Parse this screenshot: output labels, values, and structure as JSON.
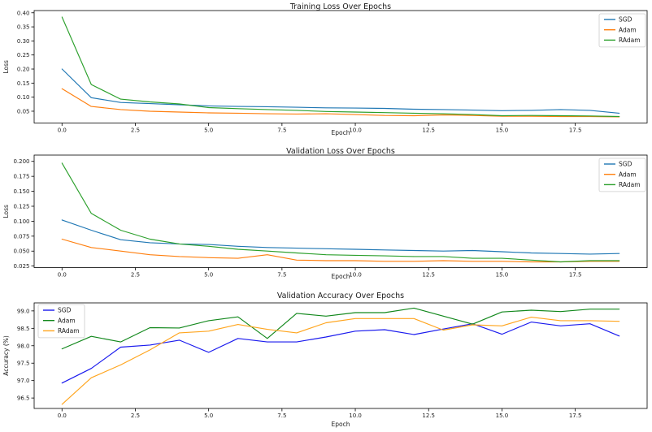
{
  "figure": {
    "background": "#ffffff",
    "text_color": "#1a1a1a",
    "frame_color": "#000000"
  },
  "chart_data": [
    {
      "type": "line",
      "title": "Training Loss Over Epochs",
      "xlabel": "Epoch",
      "ylabel": "Loss",
      "x": [
        0,
        1,
        2,
        3,
        4,
        5,
        6,
        7,
        8,
        9,
        10,
        11,
        12,
        13,
        14,
        15,
        16,
        17,
        18,
        19
      ],
      "xlim": [
        -0.95,
        19.95
      ],
      "ylim": [
        0.008,
        0.408
      ],
      "xticks": [
        0.0,
        2.5,
        5.0,
        7.5,
        10.0,
        12.5,
        15.0,
        17.5
      ],
      "yticks": [
        0.05,
        0.1,
        0.15,
        0.2,
        0.25,
        0.3,
        0.35,
        0.4
      ],
      "xtick_decimals": 1,
      "ytick_decimals": 2,
      "grid": false,
      "legend_position": "upper-right",
      "series": [
        {
          "name": "SGD",
          "color": "#1f77b4",
          "values": [
            0.2,
            0.098,
            0.081,
            0.077,
            0.073,
            0.069,
            0.067,
            0.066,
            0.064,
            0.062,
            0.061,
            0.06,
            0.057,
            0.056,
            0.054,
            0.052,
            0.053,
            0.056,
            0.053,
            0.043
          ]
        },
        {
          "name": "Adam",
          "color": "#ff7f0e",
          "values": [
            0.13,
            0.067,
            0.056,
            0.05,
            0.047,
            0.044,
            0.043,
            0.041,
            0.04,
            0.041,
            0.038,
            0.035,
            0.034,
            0.037,
            0.035,
            0.032,
            0.032,
            0.031,
            0.031,
            0.03
          ]
        },
        {
          "name": "RAdam",
          "color": "#2ca02c",
          "values": [
            0.385,
            0.145,
            0.093,
            0.083,
            0.076,
            0.063,
            0.059,
            0.056,
            0.053,
            0.049,
            0.047,
            0.045,
            0.043,
            0.041,
            0.038,
            0.034,
            0.035,
            0.034,
            0.033,
            0.031
          ]
        }
      ]
    },
    {
      "type": "line",
      "title": "Validation Loss Over Epochs",
      "xlabel": "Epoch",
      "ylabel": "Loss",
      "x": [
        0,
        1,
        2,
        3,
        4,
        5,
        6,
        7,
        8,
        9,
        10,
        11,
        12,
        13,
        14,
        15,
        16,
        17,
        18,
        19
      ],
      "xlim": [
        -0.95,
        19.95
      ],
      "ylim": [
        0.0225,
        0.2105
      ],
      "xticks": [
        0.0,
        2.5,
        5.0,
        7.5,
        10.0,
        12.5,
        15.0,
        17.5
      ],
      "yticks": [
        0.025,
        0.05,
        0.075,
        0.1,
        0.125,
        0.15,
        0.175,
        0.2
      ],
      "xtick_decimals": 1,
      "ytick_decimals": 3,
      "grid": false,
      "legend_position": "upper-right",
      "series": [
        {
          "name": "SGD",
          "color": "#1f77b4",
          "values": [
            0.102,
            0.085,
            0.069,
            0.064,
            0.062,
            0.061,
            0.058,
            0.056,
            0.055,
            0.054,
            0.053,
            0.052,
            0.051,
            0.05,
            0.051,
            0.049,
            0.047,
            0.046,
            0.045,
            0.046
          ]
        },
        {
          "name": "Adam",
          "color": "#ff7f0e",
          "values": [
            0.07,
            0.056,
            0.05,
            0.044,
            0.041,
            0.039,
            0.038,
            0.044,
            0.035,
            0.034,
            0.034,
            0.033,
            0.033,
            0.034,
            0.033,
            0.033,
            0.032,
            0.032,
            0.033,
            0.033
          ]
        },
        {
          "name": "RAdam",
          "color": "#2ca02c",
          "values": [
            0.197,
            0.113,
            0.085,
            0.07,
            0.062,
            0.058,
            0.053,
            0.05,
            0.047,
            0.044,
            0.043,
            0.042,
            0.041,
            0.041,
            0.038,
            0.038,
            0.035,
            0.032,
            0.034,
            0.034
          ]
        }
      ]
    },
    {
      "type": "line",
      "title": "Validation Accuracy Over Epochs",
      "xlabel": "Epoch",
      "ylabel": "Accuracy (%)",
      "x": [
        0,
        1,
        2,
        3,
        4,
        5,
        6,
        7,
        8,
        9,
        10,
        11,
        12,
        13,
        14,
        15,
        16,
        17,
        18,
        19
      ],
      "xlim": [
        -0.95,
        19.95
      ],
      "ylim": [
        96.2,
        99.23
      ],
      "xticks": [
        0.0,
        2.5,
        5.0,
        7.5,
        10.0,
        12.5,
        15.0,
        17.5
      ],
      "yticks": [
        96.5,
        97.0,
        97.5,
        98.0,
        98.5,
        99.0
      ],
      "xtick_decimals": 1,
      "ytick_decimals": 1,
      "grid": false,
      "legend_position": "upper-left",
      "series": [
        {
          "name": "SGD",
          "color": "#1a1aee",
          "values": [
            96.93,
            97.35,
            97.96,
            98.02,
            98.16,
            97.81,
            98.21,
            98.11,
            98.11,
            98.25,
            98.42,
            98.46,
            98.32,
            98.48,
            98.63,
            98.33,
            98.68,
            98.57,
            98.63,
            98.28
          ]
        },
        {
          "name": "Adam",
          "color": "#12881c",
          "values": [
            97.91,
            98.27,
            98.11,
            98.52,
            98.51,
            98.72,
            98.83,
            98.21,
            98.93,
            98.85,
            98.95,
            98.95,
            99.08,
            98.85,
            98.62,
            98.97,
            99.02,
            98.98,
            99.05,
            99.05
          ]
        },
        {
          "name": "RAdam",
          "color": "#ffa51e",
          "values": [
            96.32,
            97.08,
            97.45,
            97.88,
            98.37,
            98.42,
            98.61,
            98.47,
            98.37,
            98.66,
            98.78,
            98.78,
            98.78,
            98.45,
            98.6,
            98.57,
            98.82,
            98.72,
            98.72,
            98.7
          ]
        }
      ]
    }
  ]
}
